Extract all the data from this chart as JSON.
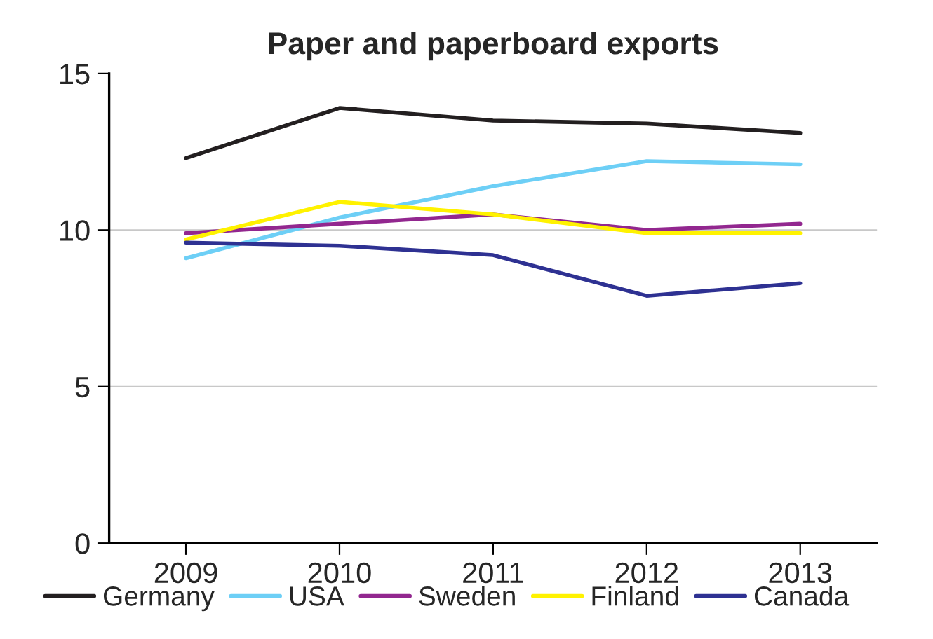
{
  "chart_data": {
    "type": "line",
    "title": "Paper and paperboard exports",
    "categories": [
      "2009",
      "2010",
      "2011",
      "2012",
      "2013"
    ],
    "series": [
      {
        "name": "Germany",
        "color": "#231f20",
        "values": [
          12.3,
          13.9,
          13.5,
          13.4,
          13.1
        ]
      },
      {
        "name": "USA",
        "color": "#6dcff6",
        "values": [
          9.1,
          10.4,
          11.4,
          12.2,
          12.1
        ]
      },
      {
        "name": "Sweden",
        "color": "#92278f",
        "values": [
          9.9,
          10.2,
          10.5,
          10.0,
          10.2
        ]
      },
      {
        "name": "Finland",
        "color": "#fff200",
        "values": [
          9.7,
          10.9,
          10.5,
          9.9,
          9.9
        ]
      },
      {
        "name": "Canada",
        "color": "#2e3192",
        "values": [
          9.6,
          9.5,
          9.2,
          7.9,
          8.3
        ]
      }
    ],
    "ylim": [
      0,
      15
    ],
    "yticks": [
      0,
      5,
      10,
      15
    ],
    "grid": "y",
    "legend": "bottom"
  }
}
